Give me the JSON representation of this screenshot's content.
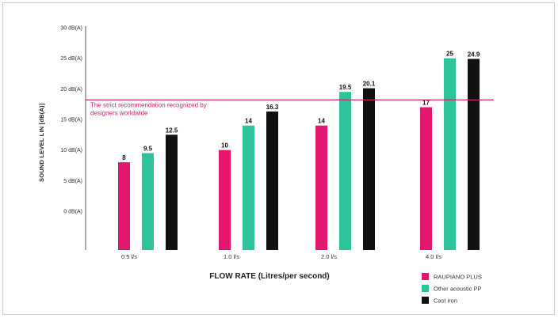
{
  "chart_data": {
    "type": "bar",
    "categories": [
      "0.5 l/s",
      "1.0 l/s",
      "2.0 l/s",
      "4.0 l/s"
    ],
    "series": [
      {
        "name": "RAUPIANO PLUS",
        "color": "#e3176f",
        "values": [
          8,
          10,
          14,
          17
        ],
        "labels": [
          "8",
          "10",
          "14",
          "17"
        ]
      },
      {
        "name": "Other acoustic PP",
        "color": "#2ec39b",
        "values": [
          9.5,
          14,
          19.5,
          25
        ],
        "labels": [
          "9.5",
          "14",
          "19.5",
          "25"
        ]
      },
      {
        "name": "Cast iron",
        "color": "#111111",
        "values": [
          12.5,
          16.3,
          20.1,
          24.9
        ],
        "labels": [
          "12.5",
          "16.3",
          "20.1",
          "24.9"
        ]
      }
    ],
    "yticks": [
      "0 dB(A)",
      "5 dB(A)",
      "10 dB(A)",
      "15 dB(A)",
      "20 dB(A)",
      "25 dB(A)",
      "30 dB(A)"
    ],
    "ylim": [
      0,
      30
    ],
    "xlabel": "FLOW RATE (Litres/per second)",
    "ylabel": "SOUND LEVEL  LIN [dB(A)]",
    "reference_line": {
      "value": 18.2,
      "color": "#d81b73",
      "label_lines": [
        "The strict recommendation recognized by",
        "designers worldwide"
      ]
    },
    "legend_position": "bottom-right"
  }
}
